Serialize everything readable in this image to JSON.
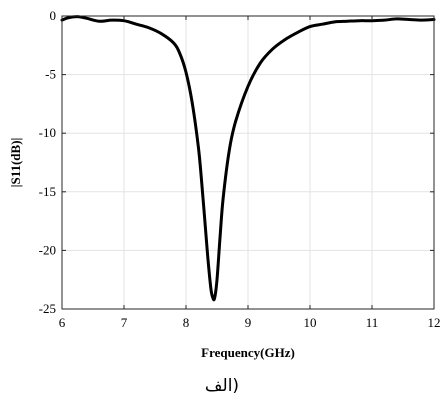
{
  "chart_data": {
    "type": "line",
    "title": "",
    "xlabel": "Frequency(GHz)",
    "ylabel": "|S11(dB)|",
    "xlim": [
      6,
      12
    ],
    "ylim": [
      -25,
      0
    ],
    "xticks": [
      6,
      7,
      8,
      9,
      10,
      11,
      12
    ],
    "yticks": [
      0,
      -5,
      -10,
      -15,
      -20,
      -25
    ],
    "xtick_labels": [
      "6",
      "7",
      "8",
      "9",
      "10",
      "11",
      "12"
    ],
    "ytick_labels": [
      "0",
      "-5",
      "-10",
      "-15",
      "-20",
      "-25"
    ],
    "grid": true,
    "series": [
      {
        "color": "#000000",
        "x": [
          6.0,
          6.1,
          6.25,
          6.4,
          6.6,
          6.8,
          7.0,
          7.2,
          7.4,
          7.6,
          7.8,
          7.9,
          8.0,
          8.1,
          8.2,
          8.25,
          8.3,
          8.35,
          8.4,
          8.43,
          8.46,
          8.5,
          8.55,
          8.6,
          8.7,
          8.8,
          9.0,
          9.2,
          9.4,
          9.6,
          9.8,
          10.0,
          10.2,
          10.4,
          10.6,
          10.8,
          11.0,
          11.2,
          11.4,
          11.6,
          11.8,
          12.0
        ],
        "y": [
          -0.35,
          -0.15,
          -0.05,
          -0.2,
          -0.45,
          -0.35,
          -0.4,
          -0.7,
          -1.0,
          -1.5,
          -2.3,
          -3.2,
          -4.8,
          -7.4,
          -11.2,
          -14.0,
          -17.2,
          -20.5,
          -23.2,
          -24.0,
          -24.1,
          -22.5,
          -18.8,
          -15.5,
          -11.4,
          -9.0,
          -6.0,
          -4.0,
          -2.8,
          -2.0,
          -1.4,
          -0.9,
          -0.7,
          -0.5,
          -0.45,
          -0.4,
          -0.4,
          -0.35,
          -0.25,
          -0.3,
          -0.35,
          -0.3
        ]
      }
    ]
  },
  "caption": "(الف"
}
